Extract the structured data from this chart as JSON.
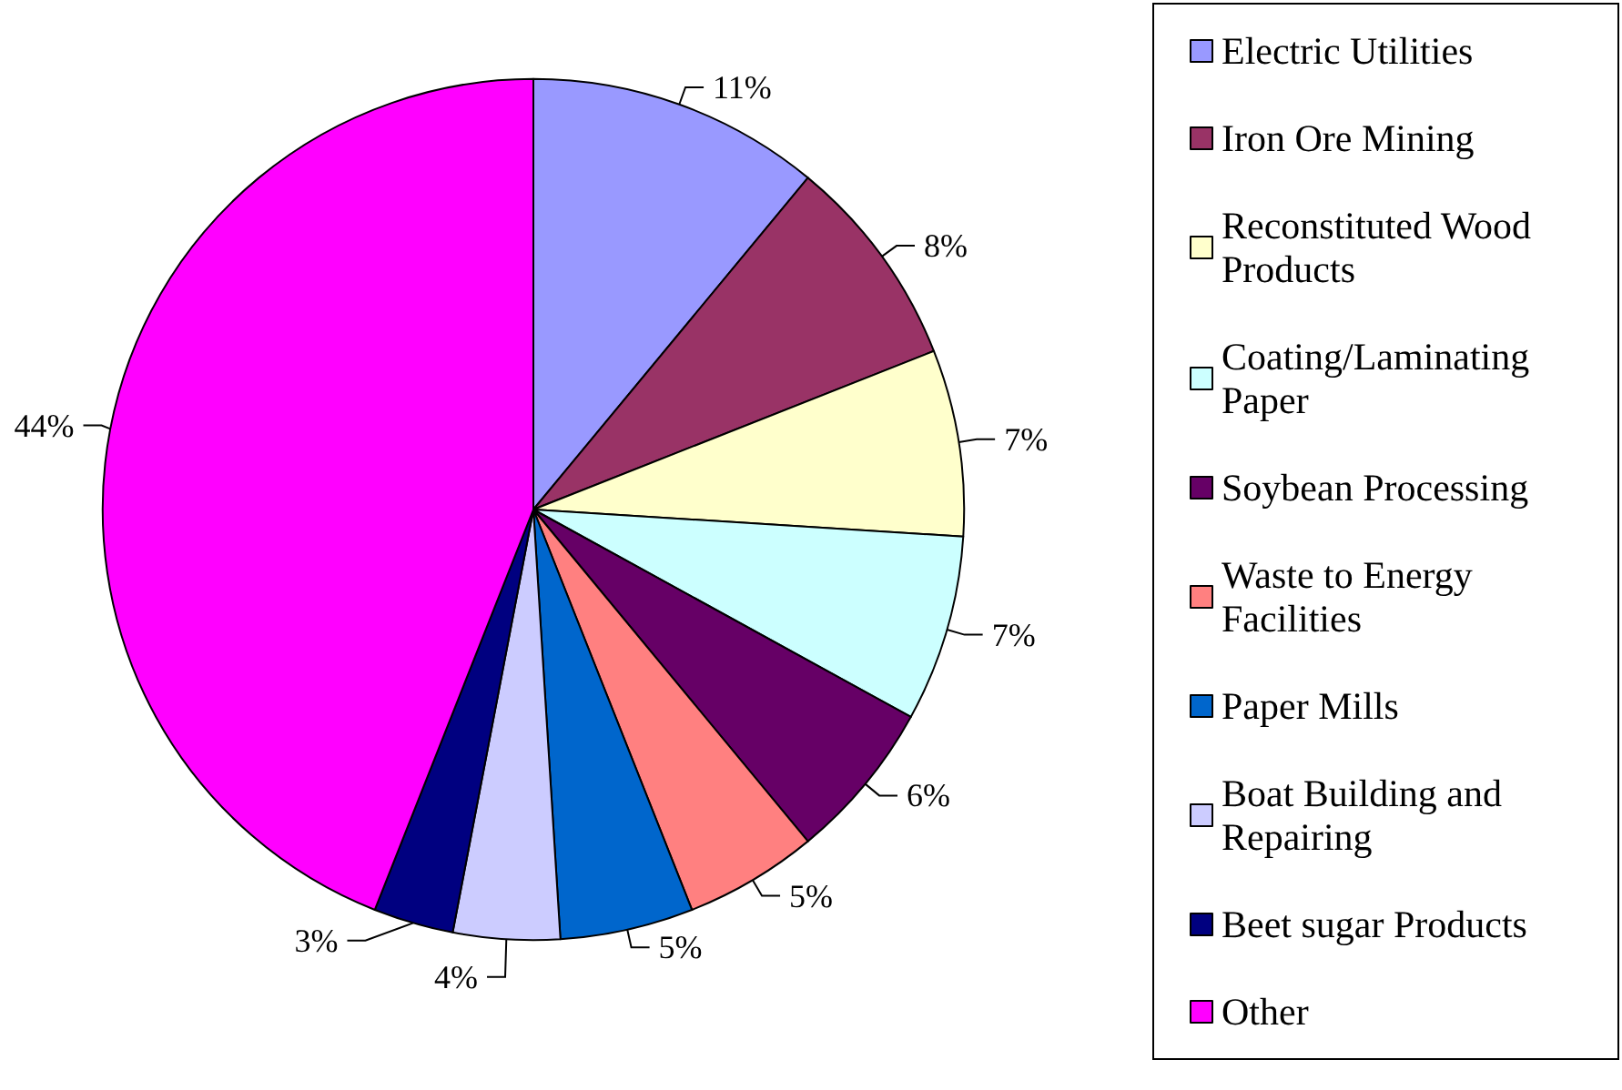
{
  "chart_data": {
    "type": "pie",
    "categories": [
      "Electric Utilities",
      "Iron Ore Mining",
      "Reconstituted Wood Products",
      "Coating/Laminating Paper",
      "Soybean Processing",
      "Waste to Energy Facilities",
      "Paper Mills",
      "Boat Building and Repairing",
      "Beet sugar Products",
      "Other"
    ],
    "values": [
      11,
      8,
      7,
      7,
      6,
      5,
      5,
      4,
      3,
      44
    ],
    "colors": [
      "#9999ff",
      "#993366",
      "#ffffcc",
      "#ccffff",
      "#660066",
      "#ff8080",
      "#0066cc",
      "#ccccff",
      "#000080",
      "#ff00ff"
    ],
    "value_labels": [
      "11%",
      "8%",
      "7%",
      "7%",
      "6%",
      "5%",
      "5%",
      "4%",
      "3%",
      "44%"
    ],
    "legend": "right"
  }
}
